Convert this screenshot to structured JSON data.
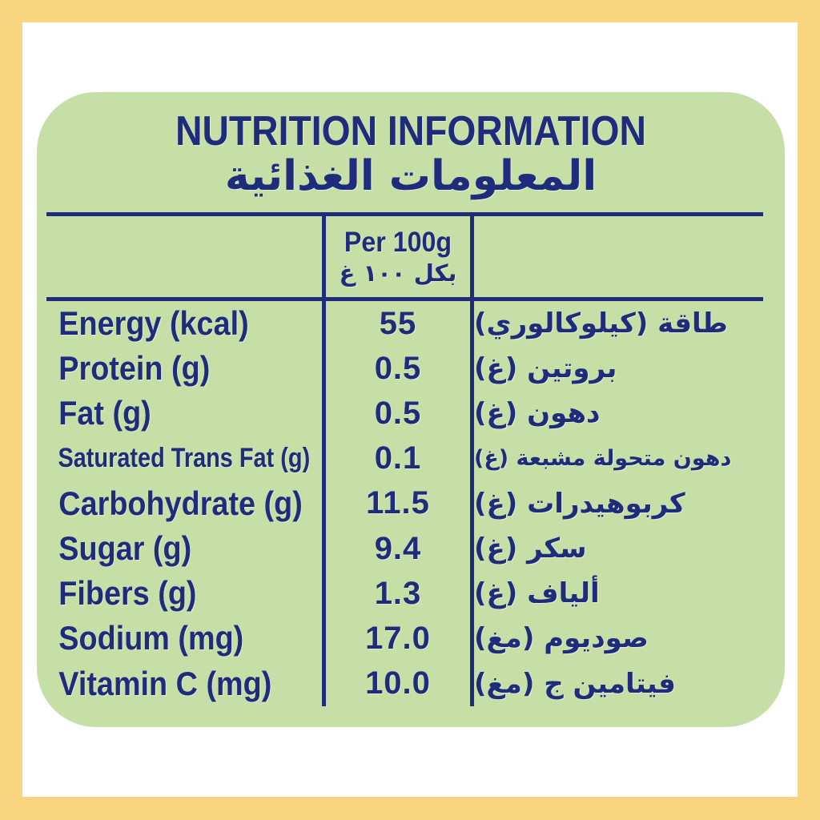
{
  "header": {
    "title_en": "NUTRITION INFORMATION",
    "title_ar": "المعلومات الغذائية"
  },
  "table": {
    "column_header": {
      "en": "Per 100g",
      "ar": "بكل ١٠٠ غ"
    },
    "rows": [
      {
        "en": "Energy (kcal)",
        "value": "55",
        "ar": "طاقة (كيلوكالوري)"
      },
      {
        "en": "Protein (g)",
        "value": "0.5",
        "ar": "بروتين (غ)"
      },
      {
        "en": "Fat (g)",
        "value": "0.5",
        "ar": "دهون (غ)"
      },
      {
        "en": "Saturated Trans Fat (g)",
        "value": "0.1",
        "ar": "دهون متحولة مشبعة (غ)"
      },
      {
        "en": "Carbohydrate (g)",
        "value": "11.5",
        "ar": "كربوهيدرات (غ)"
      },
      {
        "en": "Sugar (g)",
        "value": "9.4",
        "ar": "سكر (غ)"
      },
      {
        "en": "Fibers (g)",
        "value": "1.3",
        "ar": "ألياف (غ)"
      },
      {
        "en": "Sodium (mg)",
        "value": "17.0",
        "ar": "صوديوم (مغ)"
      },
      {
        "en": "Vitamin C (mg)",
        "value": "10.0",
        "ar": "فيتامين ج (مغ)"
      }
    ]
  },
  "colors": {
    "frame_yellow": "#FAD57F",
    "background_white": "#FFFFFF",
    "panel_green": "#C6DFA6",
    "text_navy": "#1F2B7B"
  }
}
